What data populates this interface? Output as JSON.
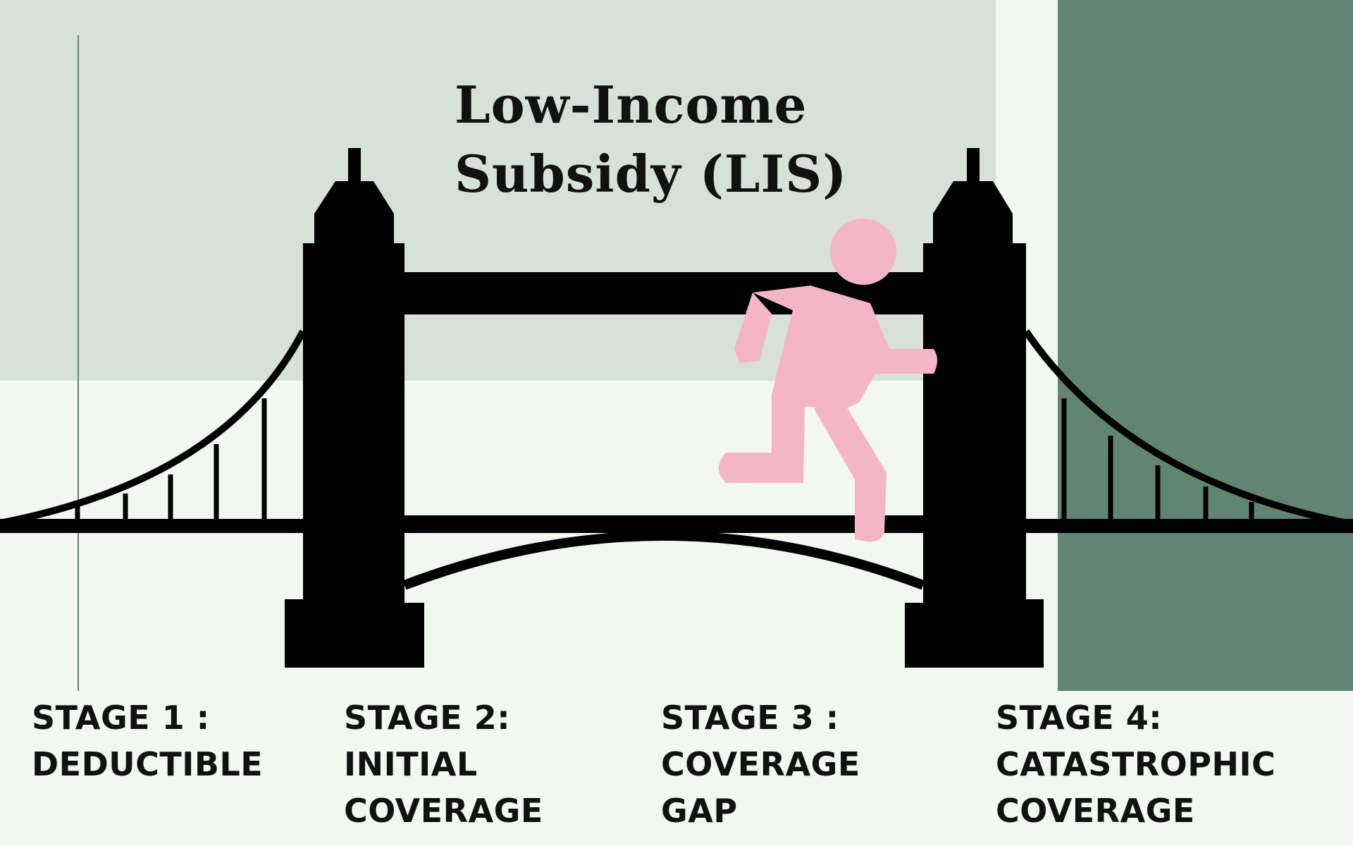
{
  "title": {
    "line1": "Low-Income",
    "line2": "Subsidy (LIS)"
  },
  "stages": [
    {
      "heading": "STAGE 1 :",
      "line1": "DEDUCTIBLE",
      "line2": ""
    },
    {
      "heading": "STAGE 2:",
      "line1": "INITIAL",
      "line2": "COVERAGE"
    },
    {
      "heading": "STAGE 3 :",
      "line1": "COVERAGE",
      "line2": "GAP"
    },
    {
      "heading": "STAGE 4:",
      "line1": "CATASTROPHIC",
      "line2": "COVERAGE"
    }
  ],
  "colors": {
    "background": "#f2f7f2",
    "top_panel": "#d7e0d9",
    "right_panel": "#628573",
    "bridge": "#000000",
    "figure": "#f5b5c8"
  },
  "icons": [
    "bridge-icon",
    "running-person-icon"
  ]
}
